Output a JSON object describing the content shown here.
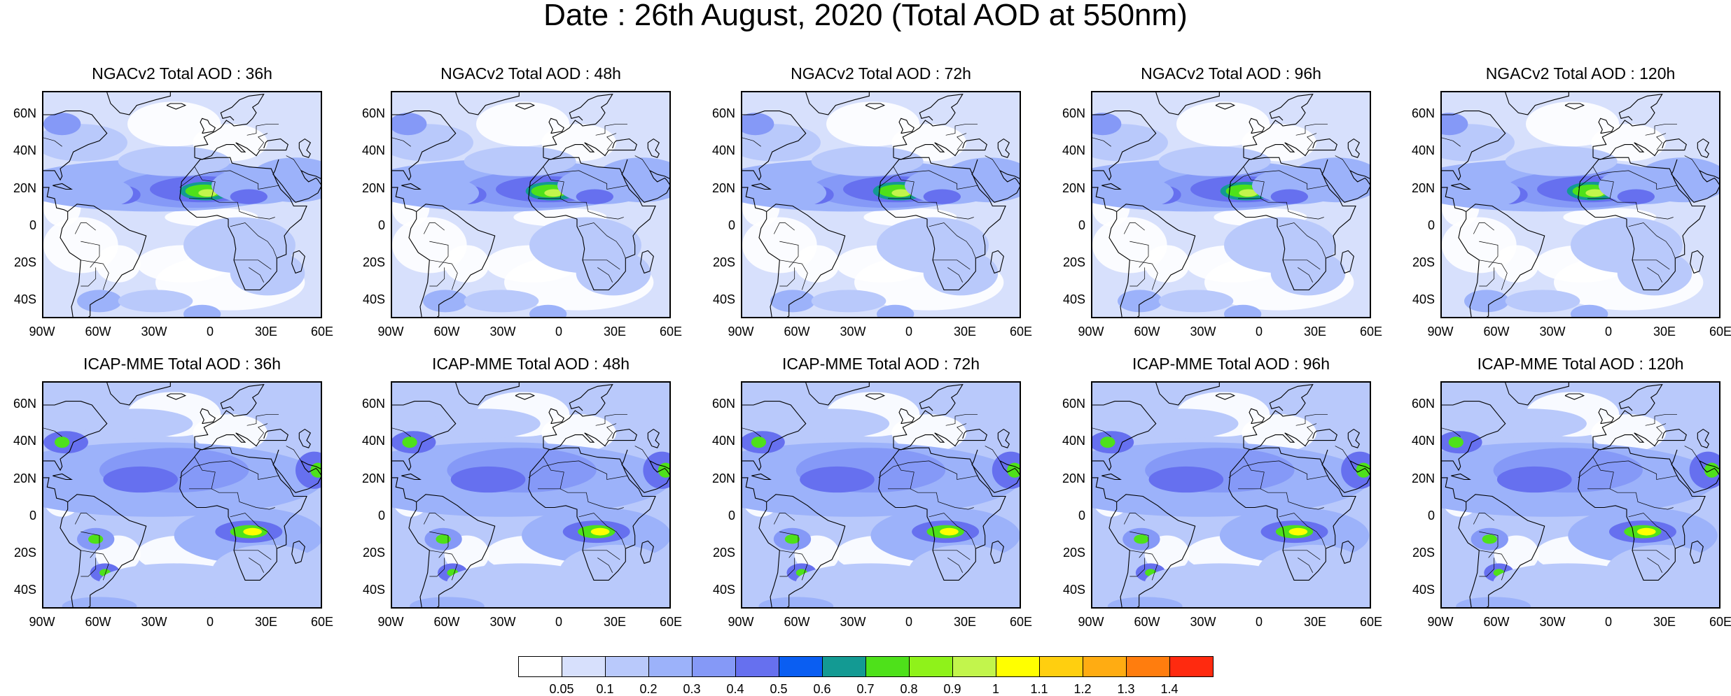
{
  "title": "Date : 26th August, 2020 (Total AOD at 550nm)",
  "colors": {
    "ocean_base": "#ccd8fb",
    "levels": [
      "#ffffff",
      "#d7e0fc",
      "#b9c9fb",
      "#9cb2fa",
      "#8599f7",
      "#6670ef",
      "#0a5ef2",
      "#139a93",
      "#4ee11a",
      "#8ff21a",
      "#c2f54c",
      "#ffff00",
      "#ffcf0f",
      "#ffac12",
      "#ff7d0e",
      "#ff2a0f"
    ]
  },
  "colorbar": {
    "labels": [
      "0.05",
      "0.1",
      "0.2",
      "0.3",
      "0.4",
      "0.5",
      "0.6",
      "0.7",
      "0.8",
      "0.9",
      "1",
      "1.1",
      "1.2",
      "1.3",
      "1.4"
    ]
  },
  "axes": {
    "y_labels": [
      "60N",
      "40N",
      "20N",
      "0",
      "20S",
      "40S"
    ],
    "x_labels": [
      "90W",
      "60W",
      "30W",
      "0",
      "30E",
      "60E"
    ]
  },
  "rows": [
    {
      "model": "NGACv2",
      "panels": [
        {
          "title": "NGACv2 Total AOD : 36h",
          "lead_hours": 36
        },
        {
          "title": "NGACv2 Total AOD : 48h",
          "lead_hours": 48
        },
        {
          "title": "NGACv2 Total AOD : 72h",
          "lead_hours": 72
        },
        {
          "title": "NGACv2 Total AOD : 96h",
          "lead_hours": 96
        },
        {
          "title": "NGACv2 Total AOD : 120h",
          "lead_hours": 120
        }
      ]
    },
    {
      "model": "ICAP-MME",
      "panels": [
        {
          "title": "ICAP-MME Total AOD : 36h",
          "lead_hours": 36
        },
        {
          "title": "ICAP-MME Total AOD : 48h",
          "lead_hours": 48
        },
        {
          "title": "ICAP-MME Total AOD : 72h",
          "lead_hours": 72
        },
        {
          "title": "ICAP-MME Total AOD : 96h",
          "lead_hours": 96
        },
        {
          "title": "ICAP-MME Total AOD : 120h",
          "lead_hours": 120
        }
      ]
    }
  ]
}
